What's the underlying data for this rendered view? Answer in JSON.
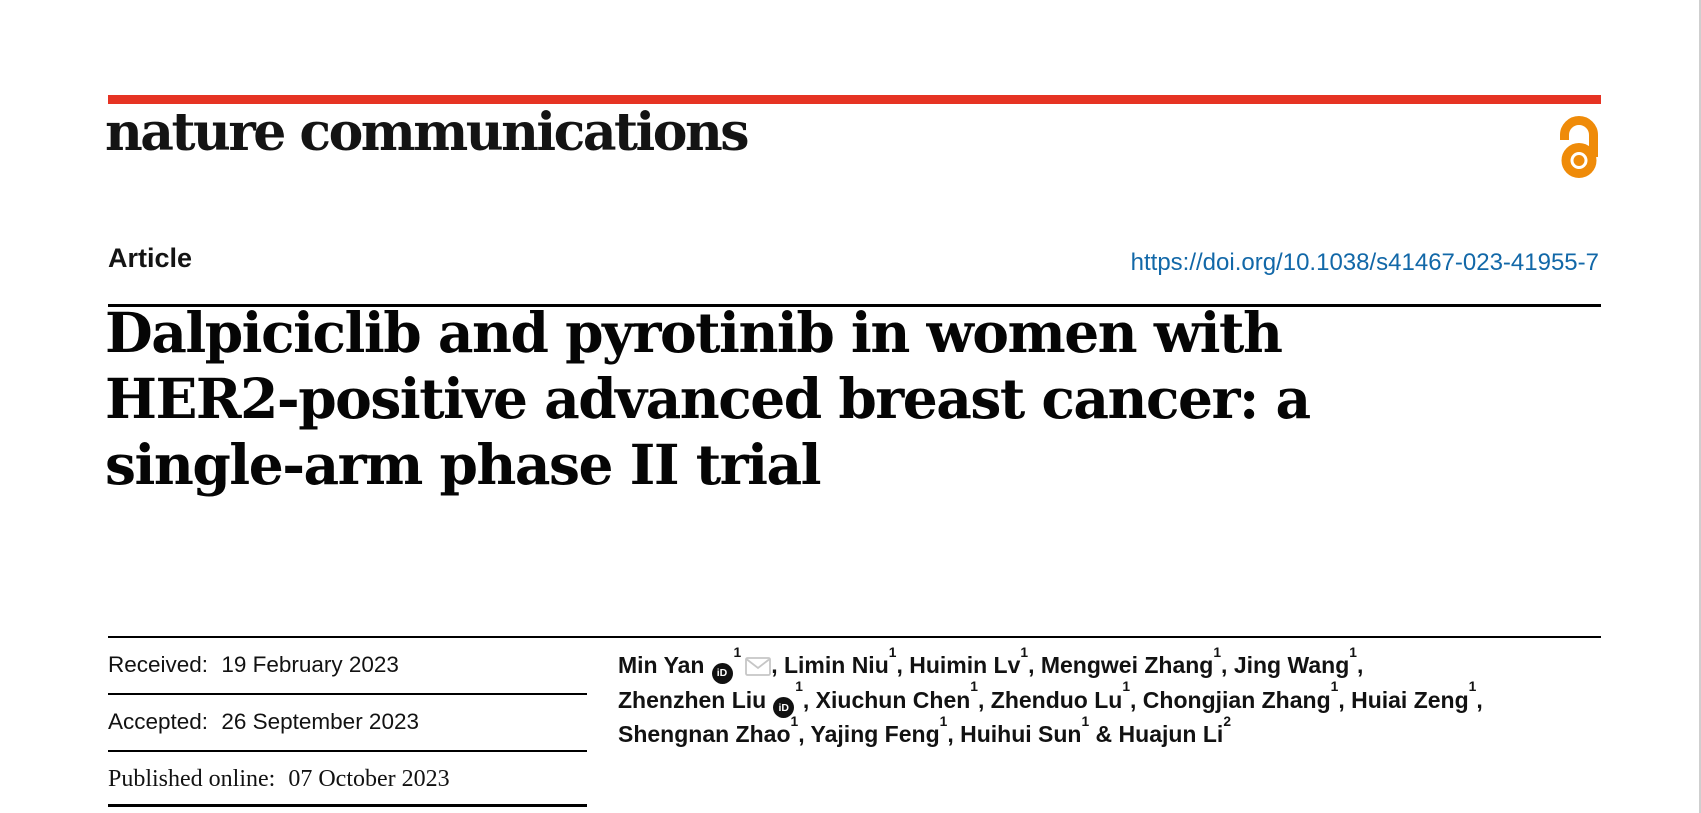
{
  "masthead": {
    "journal": "nature communications"
  },
  "article_bar": {
    "type": "Article",
    "doi": "https://doi.org/10.1038/s41467-023-41955-7"
  },
  "title": {
    "lines": [
      "Dalpiciclib and pyrotinib in women with",
      "HER2-positive advanced breast cancer: a",
      "single-arm phase II trial"
    ]
  },
  "history": {
    "rows": [
      {
        "label": "Received:",
        "date": "19 February 2023"
      },
      {
        "label": "Accepted:",
        "date": "26 September 2023"
      },
      {
        "label": "Published online:",
        "date": "07 October 2023"
      }
    ]
  },
  "authors": {
    "lines": [
      [
        {
          "text": "Min Yan"
        },
        {
          "icon": "orcid"
        },
        {
          "sup": "1"
        },
        {
          "icon": "email"
        },
        {
          "text": ", Limin Niu"
        },
        {
          "sup": "1"
        },
        {
          "text": ", Huimin Lv"
        },
        {
          "sup": "1"
        },
        {
          "text": ", Mengwei Zhang"
        },
        {
          "sup": "1"
        },
        {
          "text": ", Jing Wang"
        },
        {
          "sup": "1"
        },
        {
          "text": ","
        }
      ],
      [
        {
          "text": "Zhenzhen Liu"
        },
        {
          "icon": "orcid"
        },
        {
          "sup": "1"
        },
        {
          "text": ", Xiuchun Chen"
        },
        {
          "sup": "1"
        },
        {
          "text": ", Zhenduo Lu"
        },
        {
          "sup": "1"
        },
        {
          "text": ", Chongjian Zhang"
        },
        {
          "sup": "1"
        },
        {
          "text": ", Huiai Zeng"
        },
        {
          "sup": "1"
        },
        {
          "text": ","
        }
      ],
      [
        {
          "text": "Shengnan Zhao"
        },
        {
          "sup": "1"
        },
        {
          "text": ", Yajing Feng"
        },
        {
          "sup": "1"
        },
        {
          "text": ", Huihui Sun"
        },
        {
          "sup": "1"
        },
        {
          "text": " & Huajun Li"
        },
        {
          "sup": "2"
        }
      ]
    ]
  },
  "icons": {
    "orcid_text": "iD"
  },
  "colors": {
    "brand_red": "#e63323",
    "link_blue": "#1268a8",
    "oa_orange": "#ef8b09"
  }
}
